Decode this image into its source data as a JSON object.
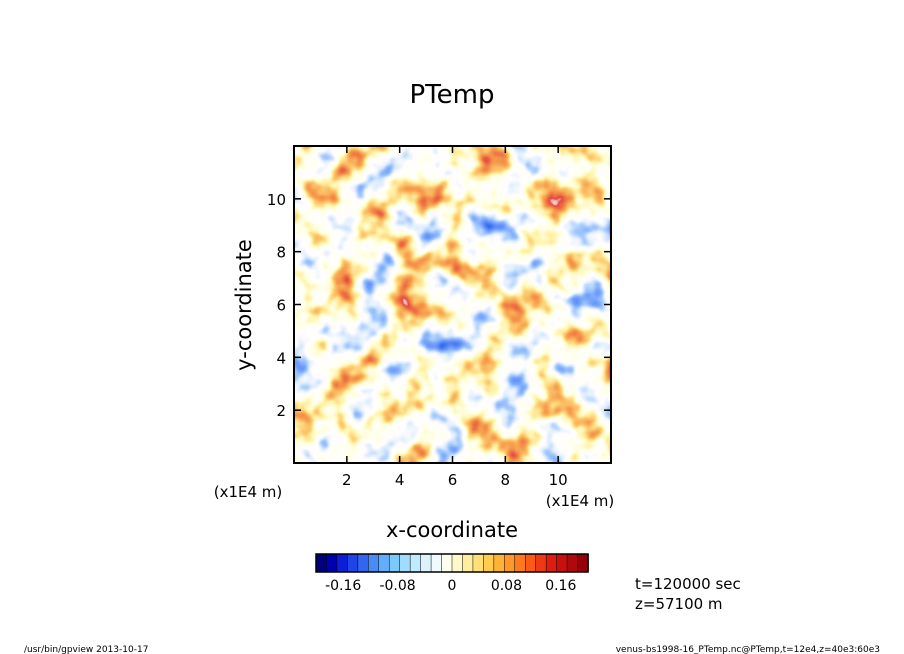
{
  "chart_data": {
    "type": "heatmap",
    "title": "PTemp",
    "xlabel": "x-coordinate",
    "ylabel": "y-coordinate",
    "x_scale_note": "(x1E4 m)",
    "y_scale_note": "(x1E4 m)",
    "xlim": [
      0,
      12
    ],
    "ylim": [
      0,
      12
    ],
    "x_ticks": [
      2,
      4,
      6,
      8,
      10
    ],
    "y_ticks": [
      2,
      4,
      6,
      8,
      10
    ],
    "x_tick_labels": [
      "2",
      "4",
      "6",
      "8",
      "10"
    ],
    "y_tick_labels": [
      "2",
      "4",
      "6",
      "8",
      "10"
    ],
    "colorbar": {
      "range": [
        -0.2,
        0.2
      ],
      "ticks": [
        -0.16,
        -0.08,
        0,
        0.08,
        0.16
      ],
      "tick_labels": [
        "-0.16",
        "-0.08",
        "0",
        "0.08",
        "0.16"
      ],
      "colors": [
        "#00007d",
        "#0000b0",
        "#0a1fd6",
        "#1f44e8",
        "#3366f0",
        "#4a8cf5",
        "#62aefa",
        "#7cc9fc",
        "#9fdcfd",
        "#c0eafd",
        "#dcf3fc",
        "#f0fafd",
        "#fffff0",
        "#fff8c8",
        "#ffeea0",
        "#ffe078",
        "#ffcc50",
        "#ffb336",
        "#ff9828",
        "#ff7a1e",
        "#f95a16",
        "#ee3a12",
        "#dc1e10",
        "#c8100e",
        "#b0080c",
        "#96000a"
      ]
    },
    "annotations": [
      "t=120000 sec",
      "z=57100 m"
    ]
  },
  "footer": {
    "left": "/usr/bin/gpview   2013-10-17",
    "right": "venus-bs1998-16_PTemp.nc@PTemp,t=12e4,z=40e3:60e3"
  }
}
